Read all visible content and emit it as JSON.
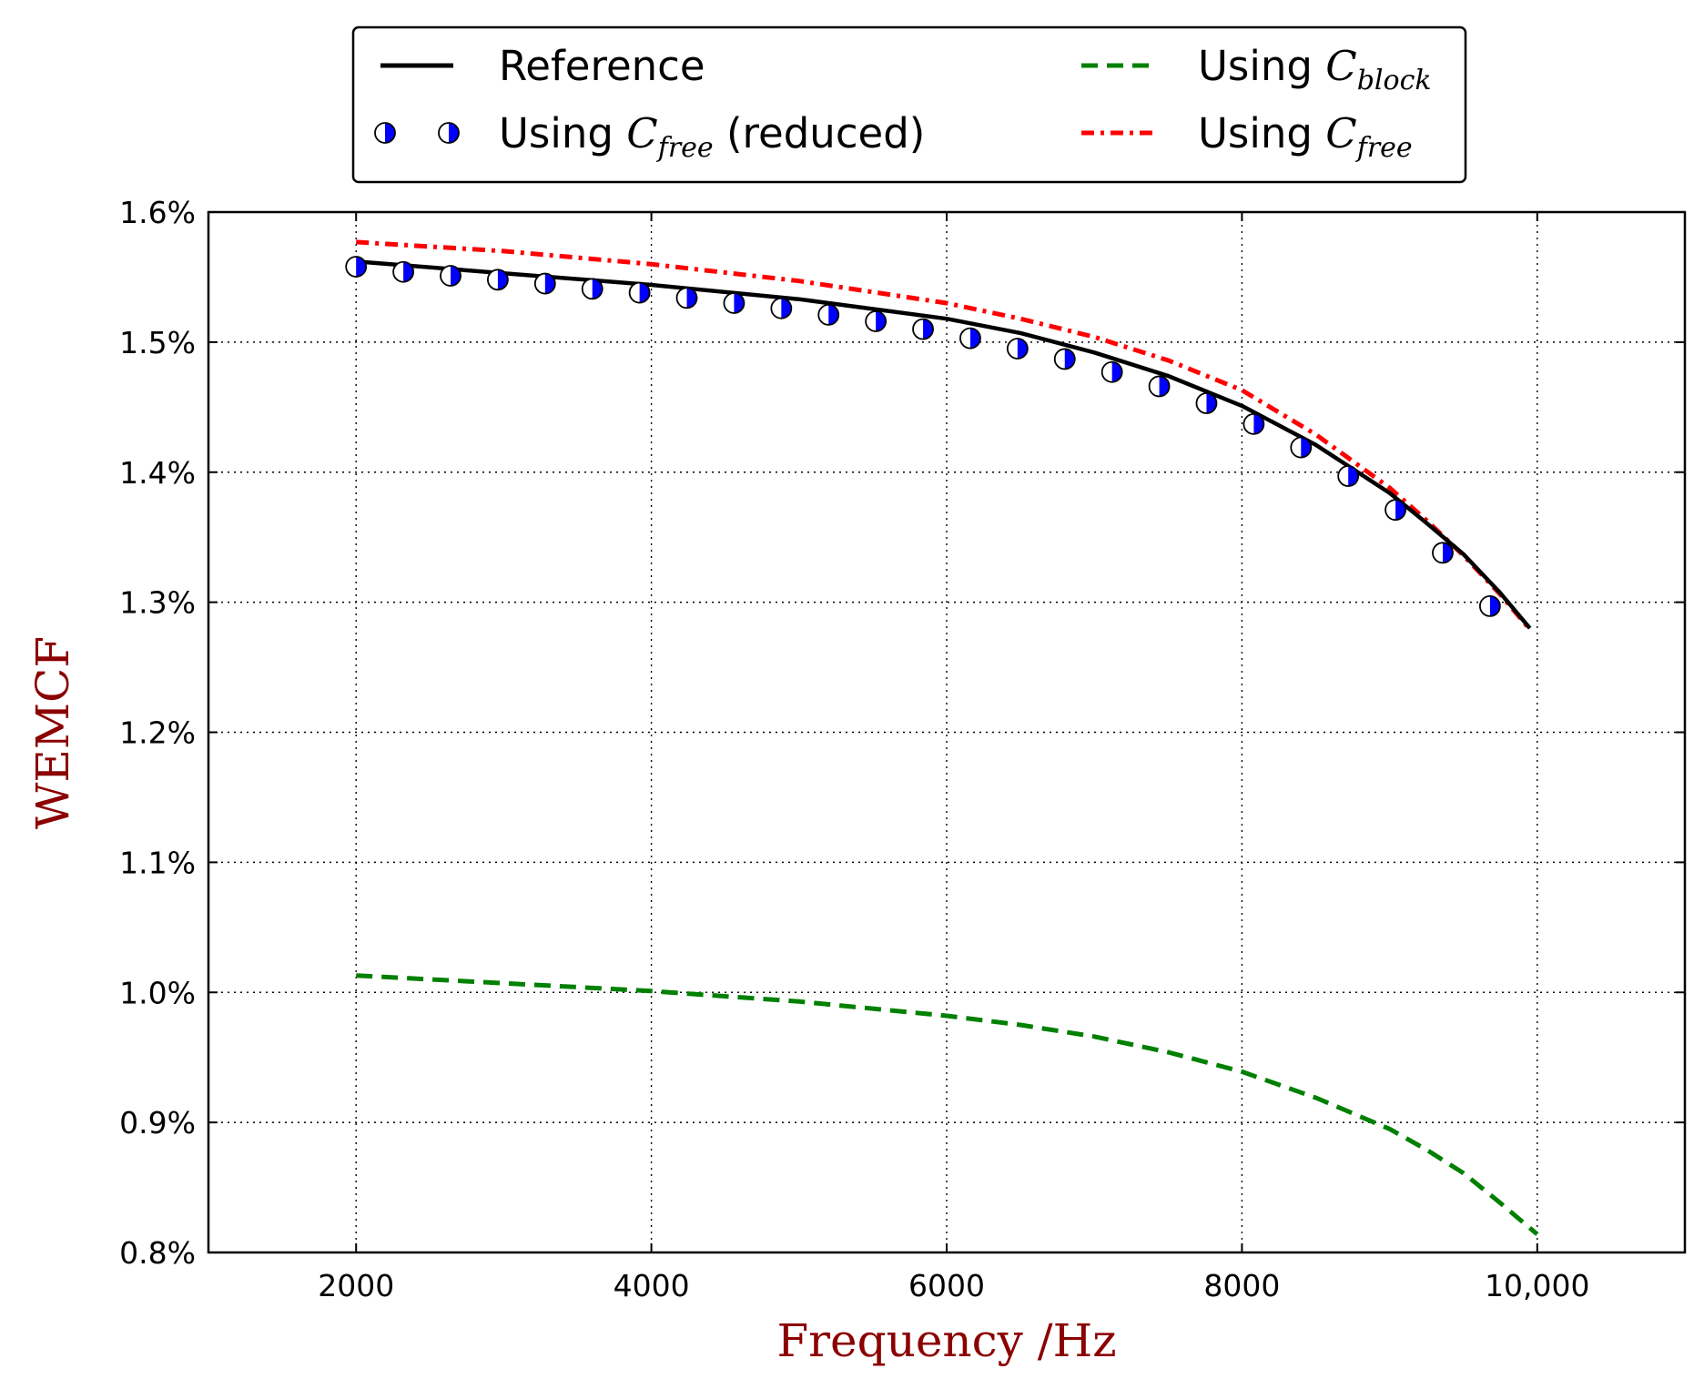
{
  "chart_data": {
    "type": "line",
    "xlabel": "Frequency /Hz",
    "ylabel": "WEMCF",
    "xlim": [
      1000,
      11000
    ],
    "ylim": [
      0.8,
      1.6
    ],
    "x_ticks": [
      2000,
      4000,
      6000,
      8000,
      10000
    ],
    "x_tick_labels": [
      "2000",
      "4000",
      "6000",
      "8000",
      "10,000"
    ],
    "y_ticks": [
      0.8,
      0.9,
      1.0,
      1.1,
      1.2,
      1.3,
      1.4,
      1.5,
      1.6
    ],
    "y_tick_labels": [
      "0.8%",
      "0.9%",
      "1.0%",
      "1.1%",
      "1.2%",
      "1.3%",
      "1.4%",
      "1.5%",
      "1.6%"
    ],
    "grid": true,
    "legend": {
      "position": "top-center",
      "entries": [
        {
          "label": "Reference",
          "series": "reference"
        },
        {
          "label_prefix": "Using ",
          "math": "C",
          "subscript": "free",
          "label_suffix": " (reduced)",
          "series": "cfree_reduced"
        },
        {
          "label_prefix": "Using ",
          "math": "C",
          "subscript": "block",
          "series": "cblock"
        },
        {
          "label_prefix": "Using ",
          "math": "C",
          "subscript": "free",
          "series": "cfree"
        }
      ]
    },
    "series": [
      {
        "name": "Reference",
        "id": "reference",
        "style": "solid",
        "color": "#000000",
        "x": [
          2000,
          3000,
          4000,
          5000,
          6000,
          6500,
          7000,
          7500,
          8000,
          8500,
          9000,
          9250,
          9500,
          9750,
          9950
        ],
        "y": [
          1.562,
          1.553,
          1.544,
          1.533,
          1.518,
          1.507,
          1.492,
          1.474,
          1.451,
          1.421,
          1.384,
          1.361,
          1.337,
          1.307,
          1.28
        ]
      },
      {
        "name": "Using C_free (reduced)",
        "id": "cfree_reduced",
        "style": "markers",
        "color": "#0000ff",
        "x": [
          2000,
          2320,
          2640,
          2960,
          3280,
          3600,
          3920,
          4240,
          4560,
          4880,
          5200,
          5520,
          5840,
          6160,
          6480,
          6800,
          7120,
          7440,
          7760,
          8080,
          8400,
          8720,
          9040,
          9360,
          9680
        ],
        "y": [
          1.558,
          1.554,
          1.551,
          1.548,
          1.545,
          1.541,
          1.538,
          1.534,
          1.53,
          1.526,
          1.521,
          1.516,
          1.51,
          1.503,
          1.495,
          1.487,
          1.477,
          1.466,
          1.453,
          1.437,
          1.419,
          1.397,
          1.371,
          1.338,
          1.297
        ]
      },
      {
        "name": "Using C_block",
        "id": "cblock",
        "style": "dashed",
        "color": "#008000",
        "x": [
          2000,
          3000,
          4000,
          5000,
          6000,
          6500,
          7000,
          7500,
          8000,
          8500,
          9000,
          9250,
          9500,
          9750,
          10000
        ],
        "y": [
          1.013,
          1.007,
          1.001,
          0.993,
          0.982,
          0.975,
          0.966,
          0.954,
          0.939,
          0.919,
          0.895,
          0.879,
          0.861,
          0.838,
          0.814
        ]
      },
      {
        "name": "Using C_free",
        "id": "cfree",
        "style": "dashdot",
        "color": "#ff0000",
        "x": [
          2000,
          3000,
          4000,
          5000,
          6000,
          6500,
          7000,
          7500,
          8000,
          8500,
          9000,
          9250,
          9500,
          9750,
          9950
        ],
        "y": [
          1.577,
          1.57,
          1.56,
          1.547,
          1.53,
          1.518,
          1.504,
          1.486,
          1.463,
          1.429,
          1.388,
          1.363,
          1.336,
          1.306,
          1.279
        ]
      }
    ]
  }
}
